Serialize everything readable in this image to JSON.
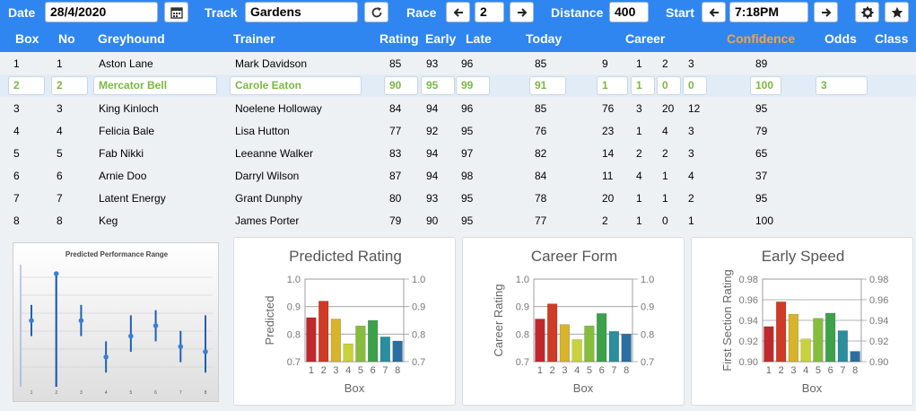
{
  "toolbar": {
    "date_label": "Date",
    "date_value": "28/4/2020",
    "date_icon": "calendar-icon",
    "track_label": "Track",
    "track_value": "Gardens",
    "refresh_icon": "refresh-icon",
    "race_label": "Race",
    "race_value": "2",
    "distance_label": "Distance",
    "distance_value": "400",
    "start_label": "Start",
    "start_value": "7:18PM",
    "settings_icon": "gear-icon",
    "favorite_icon": "star-icon"
  },
  "columns": {
    "box": "Box",
    "no": "No",
    "greyhound": "Greyhound",
    "trainer": "Trainer",
    "rating": "Rating",
    "early": "Early",
    "late": "Late",
    "today": "Today",
    "career": "Career",
    "confidence": "Confidence",
    "odds": "Odds",
    "class": "Class"
  },
  "colors": {
    "header_blue": "#2f86f0",
    "confidence_orange": "#f7a43a",
    "selected_green": "#7bb842"
  },
  "rows": [
    {
      "box": "1",
      "no": "1",
      "greyhound": "Aston Lane",
      "trainer": "Mark Davidson",
      "rating": "85",
      "early": "93",
      "late": "96",
      "today": "85",
      "starts": "9",
      "c1": "1",
      "c2": "2",
      "c3": "3",
      "confidence": "89",
      "odds": ""
    },
    {
      "box": "2",
      "no": "2",
      "greyhound": "Mercator Bell",
      "trainer": "Carole Eaton",
      "rating": "90",
      "early": "95",
      "late": "99",
      "today": "91",
      "starts": "1",
      "c1": "1",
      "c2": "0",
      "c3": "0",
      "confidence": "100",
      "odds": "3"
    },
    {
      "box": "3",
      "no": "3",
      "greyhound": "King Kinloch",
      "trainer": "Noelene Holloway",
      "rating": "84",
      "early": "94",
      "late": "96",
      "today": "85",
      "starts": "76",
      "c1": "3",
      "c2": "20",
      "c3": "12",
      "confidence": "95",
      "odds": ""
    },
    {
      "box": "4",
      "no": "4",
      "greyhound": "Felicia Bale",
      "trainer": "Lisa Hutton",
      "rating": "77",
      "early": "92",
      "late": "95",
      "today": "76",
      "starts": "23",
      "c1": "1",
      "c2": "4",
      "c3": "3",
      "confidence": "79",
      "odds": ""
    },
    {
      "box": "5",
      "no": "5",
      "greyhound": "Fab Nikki",
      "trainer": "Leeanne Walker",
      "rating": "83",
      "early": "94",
      "late": "97",
      "today": "82",
      "starts": "14",
      "c1": "2",
      "c2": "2",
      "c3": "3",
      "confidence": "65",
      "odds": ""
    },
    {
      "box": "6",
      "no": "6",
      "greyhound": "Arnie Doo",
      "trainer": "Darryl Wilson",
      "rating": "87",
      "early": "94",
      "late": "98",
      "today": "84",
      "starts": "11",
      "c1": "4",
      "c2": "1",
      "c3": "4",
      "confidence": "37",
      "odds": ""
    },
    {
      "box": "7",
      "no": "7",
      "greyhound": "Latent Energy",
      "trainer": "Grant Dunphy",
      "rating": "80",
      "early": "93",
      "late": "95",
      "today": "78",
      "starts": "20",
      "c1": "1",
      "c2": "1",
      "c3": "2",
      "confidence": "95",
      "odds": ""
    },
    {
      "box": "8",
      "no": "8",
      "greyhound": "Keg",
      "trainer": "James Porter",
      "rating": "79",
      "early": "90",
      "late": "95",
      "today": "77",
      "starts": "2",
      "c1": "1",
      "c2": "0",
      "c3": "1",
      "confidence": "100",
      "odds": ""
    }
  ],
  "chart_data": [
    {
      "type": "scatter",
      "title": "Predicted Performance Range",
      "categories": [
        "1",
        "2",
        "3",
        "4",
        "5",
        "6",
        "7",
        "8"
      ],
      "values": [
        0.86,
        0.95,
        0.86,
        0.79,
        0.83,
        0.85,
        0.81,
        0.8
      ],
      "low": [
        0.83,
        0.75,
        0.83,
        0.76,
        0.8,
        0.82,
        0.78,
        0.76
      ],
      "high": [
        0.89,
        0.95,
        0.89,
        0.82,
        0.87,
        0.88,
        0.84,
        0.87
      ],
      "ylim": [
        0.75,
        0.95
      ]
    },
    {
      "type": "bar",
      "title": "Predicted Rating",
      "xlabel": "Box",
      "ylabel": "Predicted",
      "categories": [
        "1",
        "2",
        "3",
        "4",
        "5",
        "6",
        "7",
        "8"
      ],
      "values": [
        0.86,
        0.92,
        0.855,
        0.765,
        0.83,
        0.85,
        0.79,
        0.775
      ],
      "ylim": [
        0.7,
        1.0
      ],
      "yticks": [
        "0.7",
        "0.8",
        "0.9",
        "1.0"
      ]
    },
    {
      "type": "bar",
      "title": "Career Form",
      "xlabel": "Box",
      "ylabel": "Career Rating",
      "categories": [
        "1",
        "2",
        "3",
        "4",
        "5",
        "6",
        "7",
        "8"
      ],
      "values": [
        0.855,
        0.91,
        0.835,
        0.78,
        0.83,
        0.875,
        0.81,
        0.8
      ],
      "ylim": [
        0.7,
        1.0
      ],
      "yticks": [
        "0.7",
        "0.8",
        "0.9",
        "1.0"
      ]
    },
    {
      "type": "bar",
      "title": "Early Speed",
      "xlabel": "Box",
      "ylabel": "First Section Rating",
      "categories": [
        "1",
        "2",
        "3",
        "4",
        "5",
        "6",
        "7",
        "8"
      ],
      "values": [
        0.934,
        0.958,
        0.946,
        0.922,
        0.942,
        0.947,
        0.93,
        0.91
      ],
      "ylim": [
        0.9,
        0.98
      ],
      "yticks": [
        "0.90",
        "0.92",
        "0.94",
        "0.96",
        "0.98"
      ]
    }
  ]
}
